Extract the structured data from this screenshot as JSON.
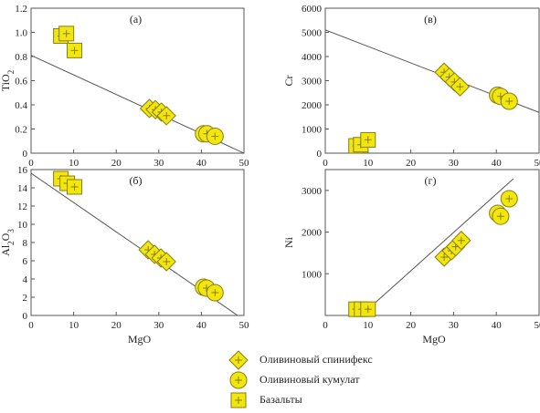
{
  "colors": {
    "marker_fill": "#f2e60f",
    "marker_stroke": "#8a7d10",
    "axis": "#555555",
    "trend": "#555555"
  },
  "legend": {
    "items": [
      {
        "symbol": "diamond",
        "label": "Оливиновый спинифекс"
      },
      {
        "symbol": "circle",
        "label": "Оливиновый кумулат"
      },
      {
        "symbol": "square",
        "label": "Базальты"
      }
    ]
  },
  "chart_data": [
    {
      "type": "scatter",
      "panel_label": "(а)",
      "xlabel": "",
      "ylabel": "TiO2",
      "xlim": [
        0,
        50
      ],
      "ylim": [
        0,
        1.2
      ],
      "xticks": [
        0,
        10,
        20,
        30,
        40,
        50
      ],
      "yticks": [
        0,
        0.2,
        0.4,
        0.6,
        0.8,
        1.0,
        1.2
      ],
      "ytick_labels": [
        "0",
        "0.2",
        "0.4",
        "0.6",
        "0.8",
        "1.0",
        "1.2"
      ],
      "series": [
        {
          "name": "Оливиновый спинифекс",
          "marker": "diamond",
          "x": [
            27.8,
            29.2,
            30.6,
            31.8
          ],
          "y": [
            0.37,
            0.36,
            0.34,
            0.31
          ]
        },
        {
          "name": "Оливиновый кумулат",
          "marker": "circle",
          "x": [
            40.5,
            41.3,
            43.2
          ],
          "y": [
            0.16,
            0.16,
            0.14
          ]
        },
        {
          "name": "Базальты",
          "marker": "square",
          "x": [
            7.0,
            8.3,
            10.2
          ],
          "y": [
            0.97,
            0.99,
            0.85
          ]
        }
      ],
      "trend": {
        "x": [
          0,
          50
        ],
        "y": [
          0.81,
          0.0
        ]
      }
    },
    {
      "type": "scatter",
      "panel_label": "(в)",
      "xlabel": "",
      "ylabel": "Cr",
      "xlim": [
        0,
        50
      ],
      "ylim": [
        0,
        6000
      ],
      "xticks": [
        0,
        10,
        20,
        30,
        40,
        50
      ],
      "yticks": [
        0,
        1000,
        2000,
        3000,
        4000,
        5000,
        6000
      ],
      "ytick_labels": [
        "0",
        "1000",
        "2000",
        "3000",
        "4000",
        "5000",
        "6000"
      ],
      "series": [
        {
          "name": "Оливиновый спинифекс",
          "marker": "diamond",
          "x": [
            27.8,
            29.0,
            30.2,
            31.5
          ],
          "y": [
            3350,
            3150,
            2950,
            2750
          ]
        },
        {
          "name": "Оливиновый кумулат",
          "marker": "circle",
          "x": [
            40.3,
            41.0,
            43.0
          ],
          "y": [
            2400,
            2350,
            2150
          ]
        },
        {
          "name": "Базальты",
          "marker": "square",
          "x": [
            7.2,
            8.3,
            10.0
          ],
          "y": [
            300,
            350,
            550
          ]
        }
      ],
      "trend": {
        "x": [
          0,
          52
        ],
        "y": [
          5100,
          1550
        ]
      }
    },
    {
      "type": "scatter",
      "panel_label": "(б)",
      "xlabel": "MgO",
      "ylabel": "Al2O3",
      "xlim": [
        0,
        50
      ],
      "ylim": [
        0,
        16
      ],
      "xticks": [
        0,
        10,
        20,
        30,
        40,
        50
      ],
      "yticks": [
        0,
        2,
        4,
        6,
        8,
        10,
        12,
        14,
        16
      ],
      "ytick_labels": [
        "0",
        "2",
        "4",
        "6",
        "8",
        "10",
        "12",
        "14",
        "16"
      ],
      "series": [
        {
          "name": "Оливиновый спинифекс",
          "marker": "diamond",
          "x": [
            27.5,
            29.0,
            30.5,
            31.8
          ],
          "y": [
            7.2,
            6.7,
            6.3,
            5.9
          ]
        },
        {
          "name": "Оливиновый кумулат",
          "marker": "circle",
          "x": [
            40.5,
            41.2,
            43.2
          ],
          "y": [
            3.1,
            3.0,
            2.5
          ]
        },
        {
          "name": "Базальты",
          "marker": "square",
          "x": [
            7.0,
            8.5,
            10.2
          ],
          "y": [
            15.0,
            14.5,
            14.1
          ]
        }
      ],
      "trend": {
        "x": [
          0,
          48.5
        ],
        "y": [
          15.6,
          0.0
        ]
      }
    },
    {
      "type": "scatter",
      "panel_label": "(г)",
      "xlabel": "MgO",
      "ylabel": "Ni",
      "xlim": [
        0,
        50
      ],
      "ylim": [
        0,
        3500
      ],
      "xticks": [
        0,
        10,
        20,
        30,
        40,
        50
      ],
      "yticks": [
        1000,
        2000,
        3000
      ],
      "ytick_labels": [
        "1000",
        "2000",
        "3000"
      ],
      "series": [
        {
          "name": "Оливиновый спинифекс",
          "marker": "diamond",
          "x": [
            27.8,
            29.5,
            30.5,
            31.8
          ],
          "y": [
            1400,
            1550,
            1650,
            1800
          ]
        },
        {
          "name": "Оливиновый кумулат",
          "marker": "circle",
          "x": [
            40.3,
            41.0,
            43.0
          ],
          "y": [
            2450,
            2380,
            2800
          ]
        },
        {
          "name": "Базальты",
          "marker": "square",
          "x": [
            7.2,
            8.5,
            10.0
          ],
          "y": [
            150,
            150,
            150
          ]
        }
      ],
      "trend": {
        "x": [
          10,
          44
        ],
        "y": [
          150,
          3280
        ]
      }
    }
  ]
}
